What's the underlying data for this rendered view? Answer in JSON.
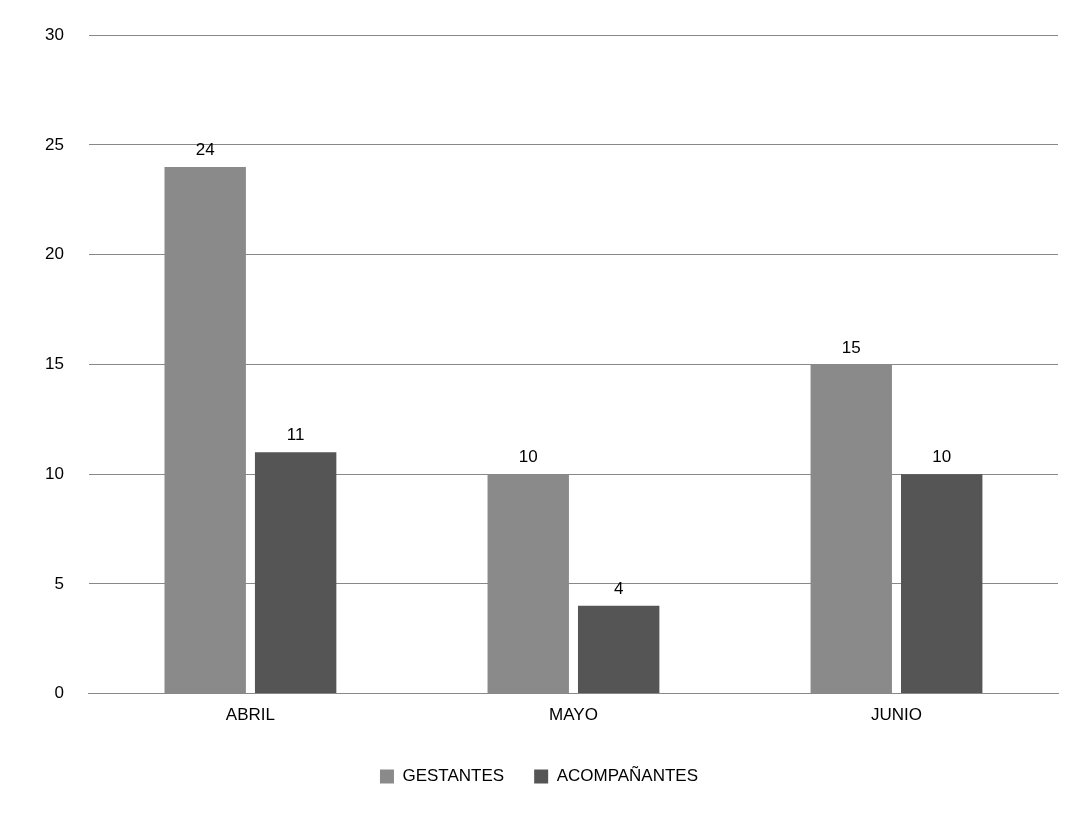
{
  "chart_data": {
    "type": "bar",
    "categories": [
      "ABRIL",
      "MAYO",
      "JUNIO"
    ],
    "series": [
      {
        "name": "GESTANTES",
        "color": "#8a8a8a",
        "values": [
          24,
          10,
          15
        ]
      },
      {
        "name": "ACOMPAÑANTES",
        "color": "#555555",
        "values": [
          11,
          4,
          10
        ]
      }
    ],
    "ylim": [
      0,
      30
    ],
    "yticks": [
      0,
      5,
      10,
      15,
      20,
      25,
      30
    ],
    "grid": "y",
    "legend": "bottom",
    "data_labels": true
  }
}
